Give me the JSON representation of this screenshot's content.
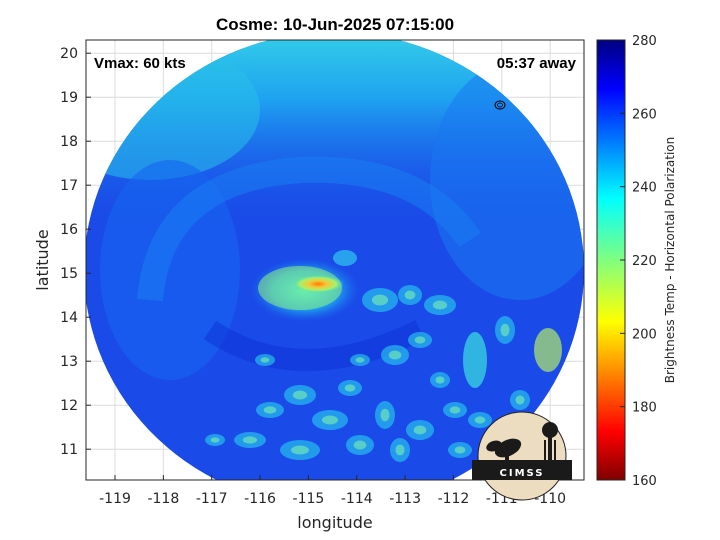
{
  "title": "Cosme: 10-Jun-2025 07:15:00",
  "vmax_label": "Vmax: 60 kts",
  "away_label": "05:37 away",
  "x_axis": {
    "label": "longitude",
    "min": -119.6,
    "max": -109.3,
    "ticks": [
      -119,
      -118,
      -117,
      -116,
      -115,
      -114,
      -113,
      -112,
      -111,
      -110
    ]
  },
  "y_axis": {
    "label": "latitude",
    "min": 10.3,
    "max": 20.3,
    "ticks": [
      11,
      12,
      13,
      14,
      15,
      16,
      17,
      18,
      19,
      20
    ]
  },
  "colorbar": {
    "label": "Brightness Temp - Horizontal Polarization",
    "min": 160,
    "max": 280,
    "ticks": [
      160,
      180,
      200,
      220,
      240,
      260,
      280
    ],
    "colormap": "jet"
  },
  "storm_center": {
    "lon": -114.6,
    "lat": 14.75
  },
  "logo_text": "CIMSS",
  "colors": {
    "background_swath": "#1a3fe6",
    "warm": "#0b8ef0",
    "eye_core": "#f0d030"
  }
}
